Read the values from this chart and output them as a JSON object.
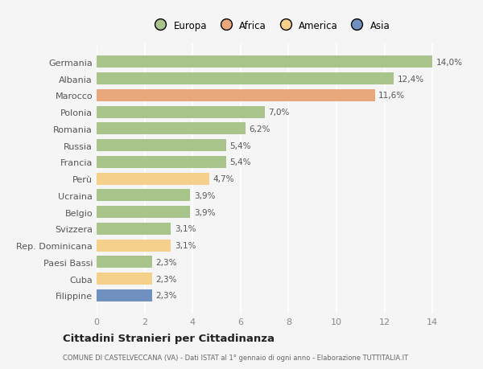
{
  "categories": [
    "Germania",
    "Albania",
    "Marocco",
    "Polonia",
    "Romania",
    "Russia",
    "Francia",
    "Perù",
    "Ucraina",
    "Belgio",
    "Svizzera",
    "Rep. Dominicana",
    "Paesi Bassi",
    "Cuba",
    "Filippine"
  ],
  "values": [
    14.0,
    12.4,
    11.6,
    7.0,
    6.2,
    5.4,
    5.4,
    4.7,
    3.9,
    3.9,
    3.1,
    3.1,
    2.3,
    2.3,
    2.3
  ],
  "labels": [
    "14,0%",
    "12,4%",
    "11,6%",
    "7,0%",
    "6,2%",
    "5,4%",
    "5,4%",
    "4,7%",
    "3,9%",
    "3,9%",
    "3,1%",
    "3,1%",
    "2,3%",
    "2,3%",
    "2,3%"
  ],
  "colors": [
    "#a8c48a",
    "#a8c48a",
    "#e8a87c",
    "#a8c48a",
    "#a8c48a",
    "#a8c48a",
    "#a8c48a",
    "#f5d08a",
    "#a8c48a",
    "#a8c48a",
    "#a8c48a",
    "#f5d08a",
    "#a8c48a",
    "#f5d08a",
    "#7090c0"
  ],
  "legend_labels": [
    "Europa",
    "Africa",
    "America",
    "Asia"
  ],
  "legend_colors": [
    "#a8c48a",
    "#e8a87c",
    "#f5d08a",
    "#7090c0"
  ],
  "title": "Cittadini Stranieri per Cittadinanza",
  "subtitle": "COMUNE DI CASTELVECCANA (VA) - Dati ISTAT al 1° gennaio di ogni anno - Elaborazione TUTTITALIA.IT",
  "xlim": [
    0,
    14
  ],
  "xticks": [
    0,
    2,
    4,
    6,
    8,
    10,
    12,
    14
  ],
  "background_color": "#f5f5f5",
  "grid_color": "#ffffff",
  "bar_height": 0.72,
  "label_fontsize": 7.5,
  "tick_fontsize": 8.0,
  "legend_fontsize": 8.5
}
